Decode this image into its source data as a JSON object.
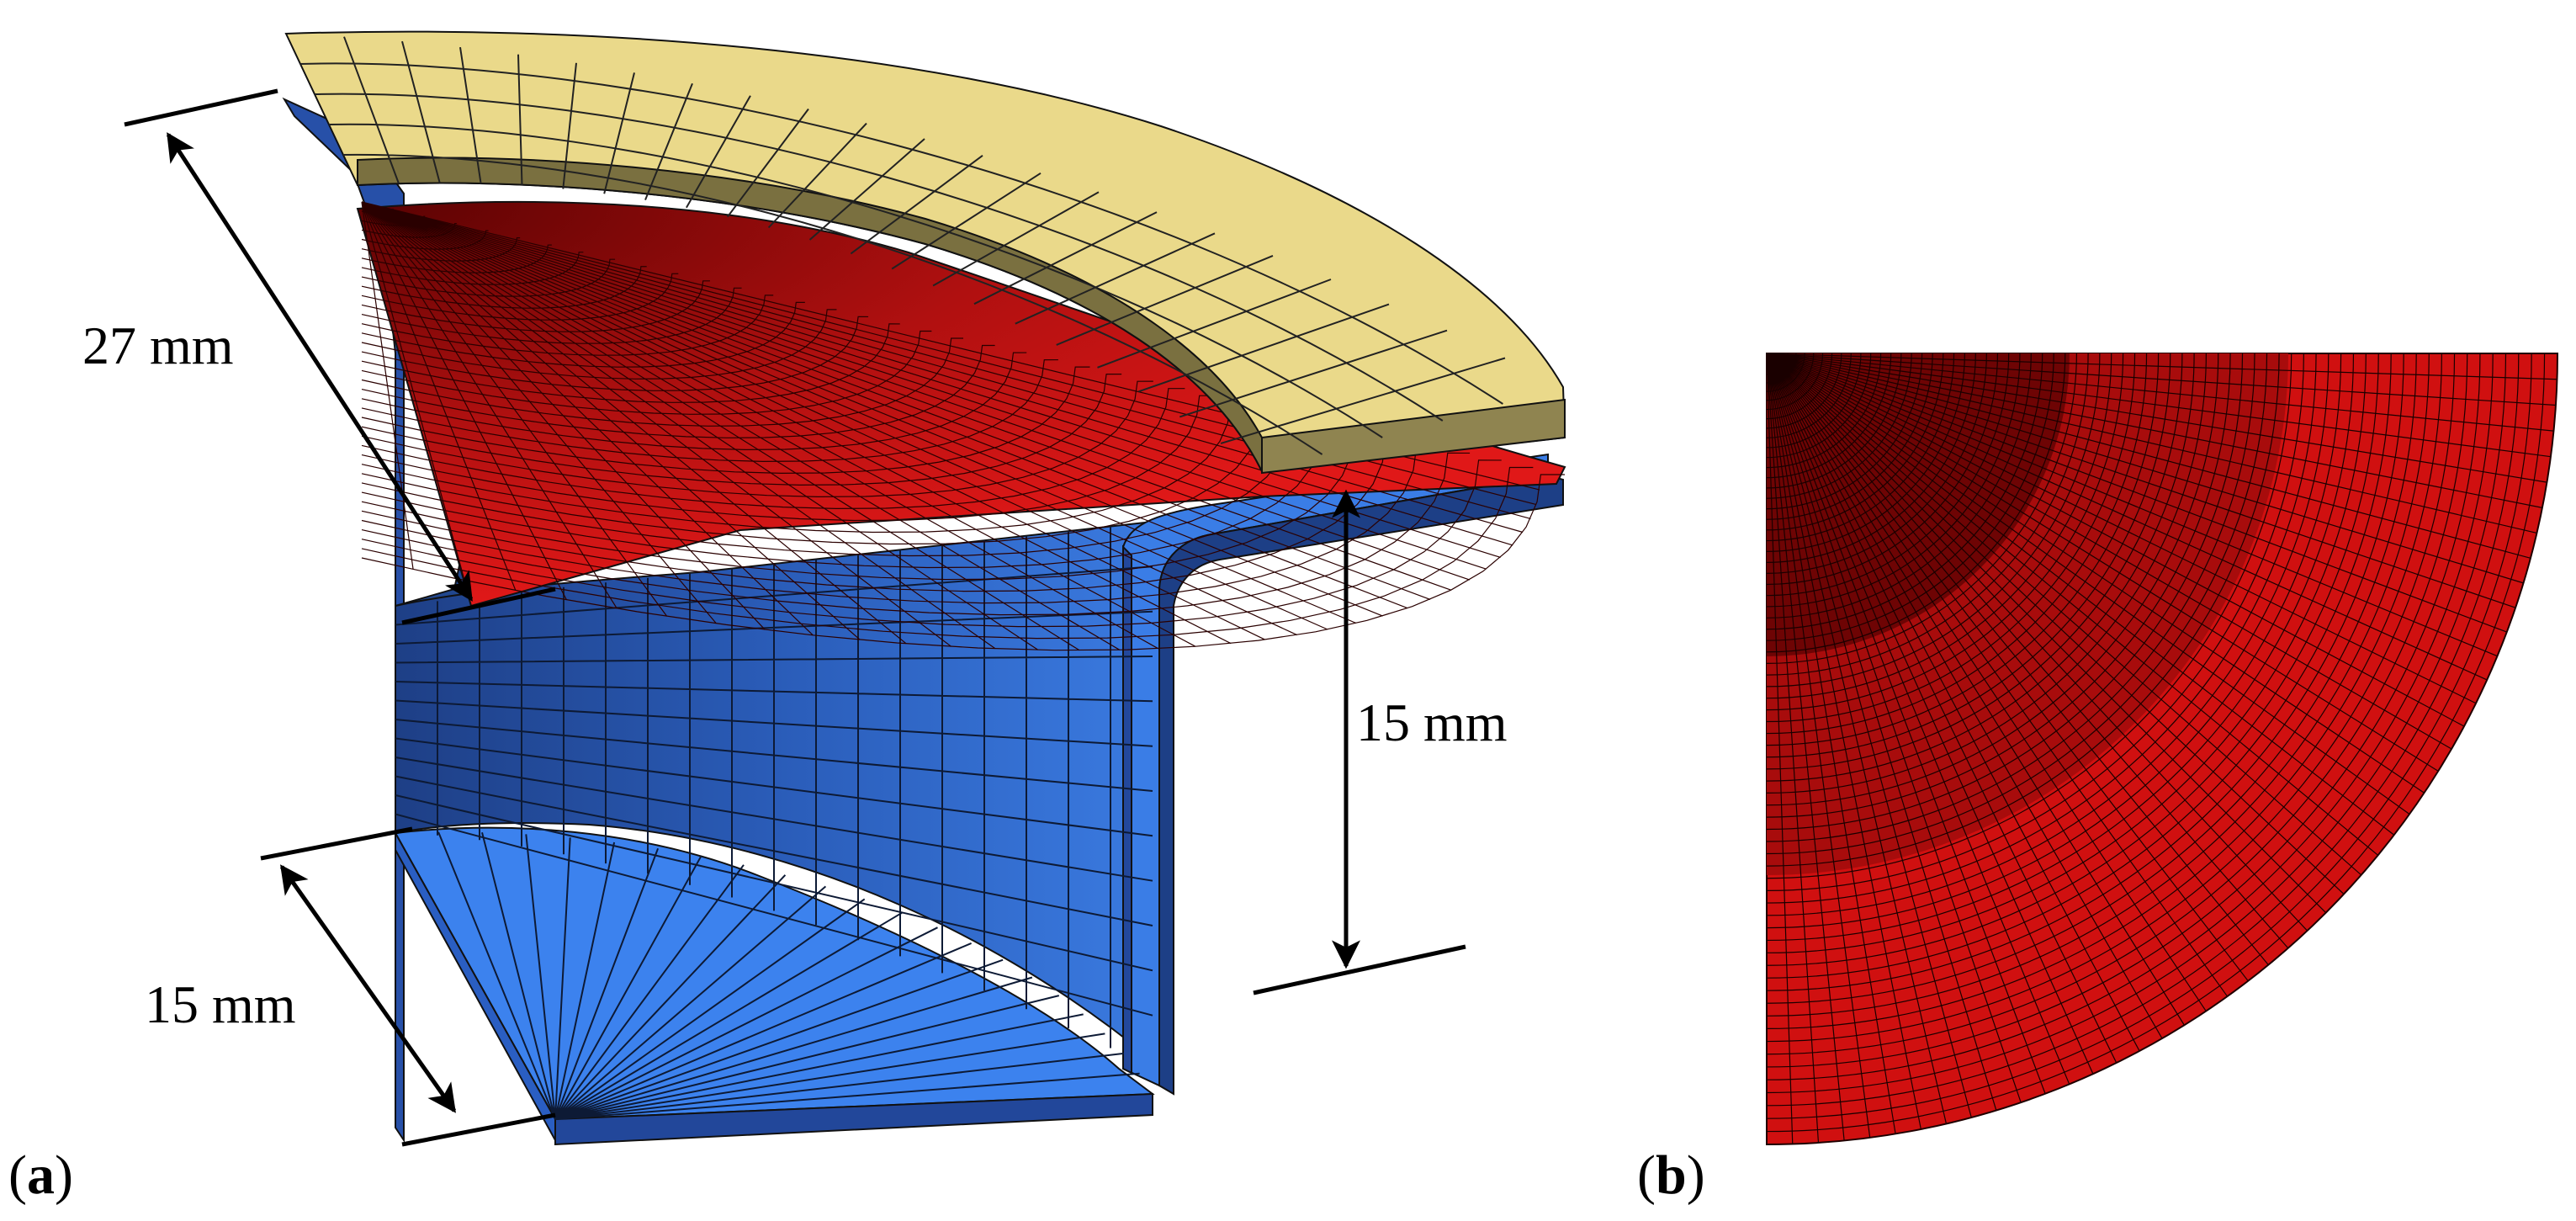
{
  "figure": {
    "panel_a": {
      "label_open": "(",
      "label_letter": "a",
      "label_close": ")",
      "dimensions": {
        "blank_diameter": "27 mm",
        "punch_height": "15 mm",
        "die_radius": "15 mm"
      }
    },
    "panel_b": {
      "label_open": "(",
      "label_letter": "b",
      "label_close": ")"
    }
  },
  "colors": {
    "blue_light": "#3f86f0",
    "blue_mid": "#2c64c4",
    "blue_dark": "#1d3f86",
    "red": "#ee1c1c",
    "red_dark": "#8e0a0a",
    "yellow": "#ead98a",
    "yellow_dark": "#6e6538",
    "mesh_line": "#141414"
  }
}
